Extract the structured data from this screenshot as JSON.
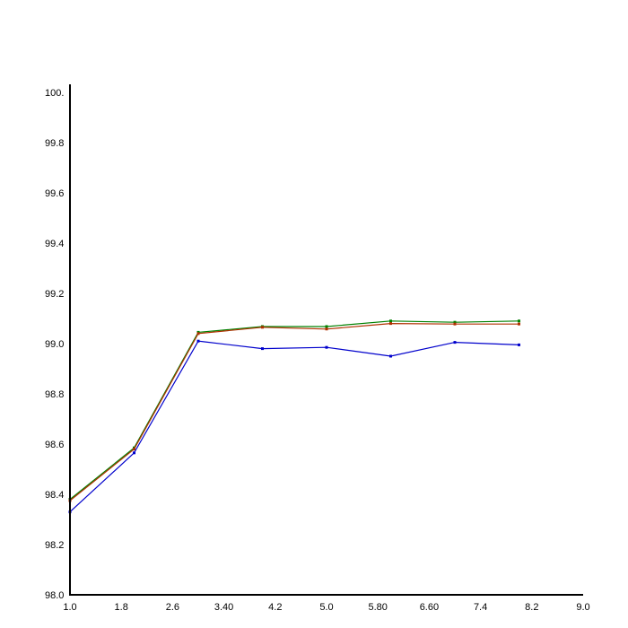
{
  "chart_data": {
    "type": "line",
    "title": "",
    "xlabel": "",
    "ylabel": "",
    "xlim": [
      1.0,
      9.0
    ],
    "ylim": [
      98.0,
      100.0
    ],
    "x_ticks": [
      1.0,
      1.8,
      2.6,
      3.4,
      4.2,
      5.0,
      5.8,
      6.6,
      7.4,
      8.2,
      9.0
    ],
    "x_tick_labels": [
      "1.0",
      "1.8",
      "2.6",
      "3.40",
      "4.2",
      "5.0",
      "5.80",
      "6.60",
      "7.4",
      "8.2",
      "9.0"
    ],
    "y_ticks": [
      98.0,
      98.2,
      98.4,
      98.6,
      98.8,
      99.0,
      99.2,
      99.4,
      99.6,
      99.8,
      100.0
    ],
    "y_tick_labels": [
      "98.0",
      "98.2",
      "98.4",
      "98.6",
      "98.8",
      "99.0",
      "99.2",
      "99.4",
      "99.6",
      "99.8",
      "100."
    ],
    "grid": false,
    "legend": "none",
    "x": [
      1,
      2,
      3,
      4,
      5,
      6,
      7,
      8
    ],
    "series": [
      {
        "color": "#008000",
        "values": [
          98.38,
          98.585,
          99.045,
          99.068,
          99.068,
          99.09,
          99.085,
          99.09
        ]
      },
      {
        "color": "#b03000",
        "values": [
          98.375,
          98.58,
          99.04,
          99.065,
          99.058,
          99.08,
          99.078,
          99.078
        ]
      },
      {
        "color": "#0000cc",
        "values": [
          98.33,
          98.565,
          99.01,
          98.98,
          98.985,
          98.95,
          99.005,
          98.995
        ]
      }
    ]
  }
}
